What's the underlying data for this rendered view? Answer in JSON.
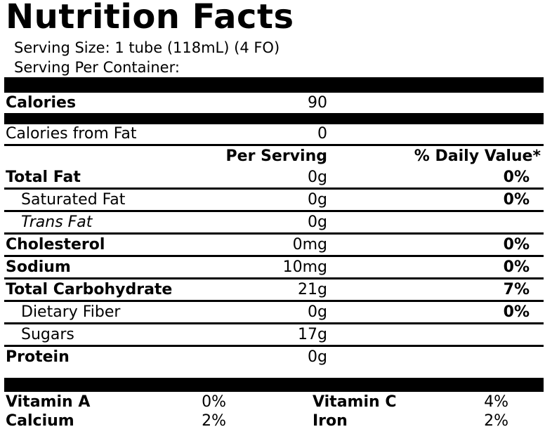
{
  "title": "Nutrition Facts",
  "serving_size": "Serving Size:  1 tube (118mL) (4 FO)",
  "servings_per_container": "Serving Per Container:",
  "calories": {
    "label": "Calories",
    "amount": "90"
  },
  "calories_from_fat": {
    "label": "Calories from Fat",
    "amount": "0"
  },
  "header": {
    "per_serving": "Per Serving",
    "daily_value": "% Daily Value*"
  },
  "rows": [
    {
      "label": "Total Fat",
      "amount": "0g",
      "dv": "0%"
    },
    {
      "label": "Saturated Fat",
      "amount": "0g",
      "dv": "0%"
    },
    {
      "label": "Trans Fat",
      "amount": "0g"
    },
    {
      "label": "Cholesterol",
      "amount": "0mg",
      "dv": "0%"
    },
    {
      "label": "Sodium",
      "amount": "10mg",
      "dv": "0%"
    },
    {
      "label": "Total Carbohydrate",
      "amount": "21g",
      "dv": "7%"
    },
    {
      "label": "Dietary Fiber",
      "amount": "0g",
      "dv": "0%"
    },
    {
      "label": "Sugars",
      "amount": "17g"
    },
    {
      "label": "Protein",
      "amount": "0g"
    }
  ],
  "vitamins": [
    {
      "name": "Vitamin A",
      "value": "0%"
    },
    {
      "name": "Vitamin C",
      "value": "4%"
    },
    {
      "name": "Calcium",
      "value": "2%"
    },
    {
      "name": "Iron",
      "value": "2%"
    }
  ]
}
